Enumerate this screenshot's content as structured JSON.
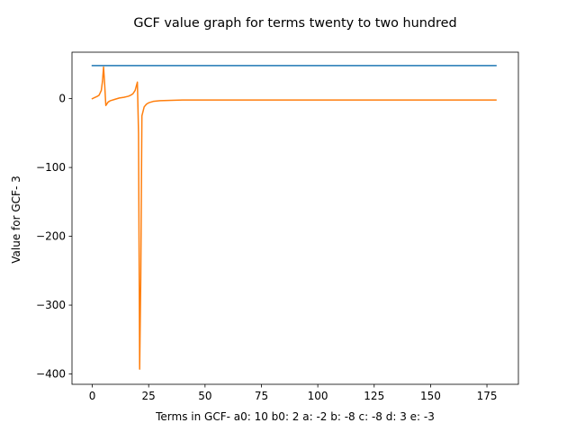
{
  "chart_data": {
    "type": "line",
    "title": "GCF value graph for terms twenty to two hundred",
    "xlabel": "Terms in GCF-  a0: 10 b0: 2 a: -2 b: -8 c: -8 d: 3 e: -3",
    "ylabel": "Value for GCF- 3",
    "xlim": [
      -9,
      188.95
    ],
    "ylim": [
      -415,
      67.5
    ],
    "xticks": [
      0,
      25,
      50,
      75,
      100,
      125,
      150,
      175
    ],
    "yticks": [
      0,
      -100,
      -200,
      -300,
      -400
    ],
    "ytick_labels": [
      "0",
      "−100",
      "−200",
      "−300",
      "−400"
    ],
    "grid": false,
    "series": [
      {
        "color": "#1f77b4",
        "x": [
          0,
          179
        ],
        "y": [
          48,
          48
        ]
      },
      {
        "color": "#ff7f0e",
        "x": [
          0,
          1,
          2,
          3,
          4,
          4.5,
          5,
          5.5,
          6,
          7,
          8,
          10,
          12,
          14,
          16,
          17,
          18,
          19,
          19.5,
          20,
          20.5,
          21,
          21.5,
          22,
          23,
          24,
          25,
          27,
          30,
          35,
          40,
          50,
          60,
          80,
          100,
          120,
          140,
          160,
          179
        ],
        "y": [
          0,
          1.5,
          3,
          5,
          12,
          25,
          46,
          20,
          -10,
          -5,
          -3,
          -1,
          1,
          2,
          3.5,
          5,
          7,
          12,
          18,
          24,
          -50,
          -393,
          -260,
          -25,
          -12,
          -8,
          -6,
          -4,
          -3,
          -2.5,
          -2,
          -2,
          -2,
          -2,
          -2,
          -2,
          -2,
          -2,
          -2
        ]
      }
    ]
  }
}
